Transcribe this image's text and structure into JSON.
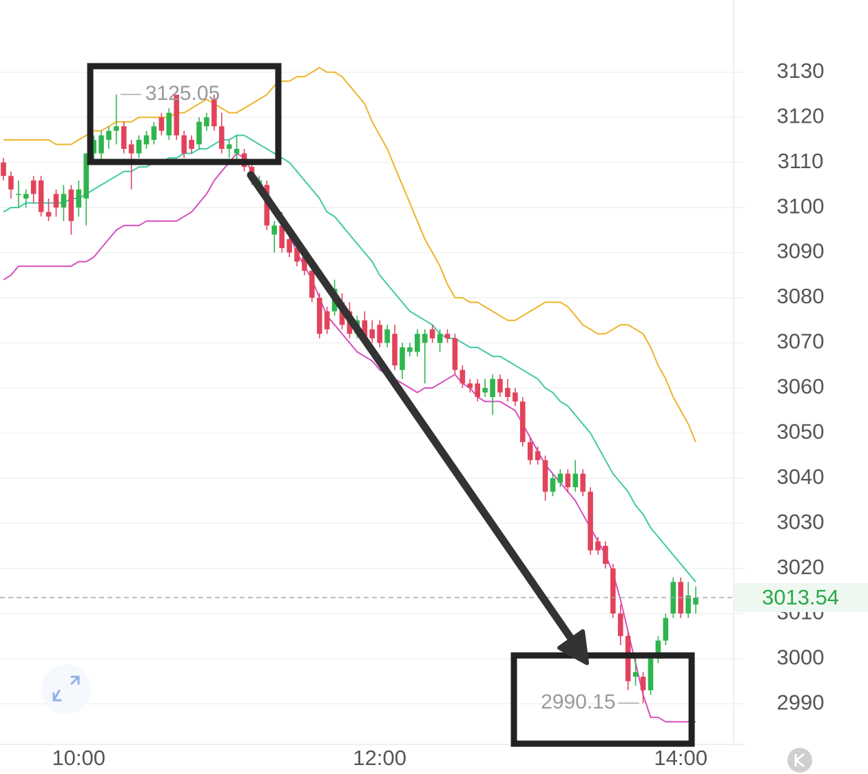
{
  "chart_data": {
    "type": "candlestick",
    "categories": [
      null,
      null,
      null,
      null,
      null,
      null,
      null,
      null,
      null,
      null,
      "10:00",
      null,
      null,
      null,
      null,
      null,
      null,
      null,
      null,
      null,
      null,
      null,
      null,
      null,
      null,
      null,
      null,
      null,
      null,
      null,
      null,
      null,
      null,
      null,
      null,
      null,
      null,
      null,
      null,
      null,
      null,
      null,
      null,
      null,
      null,
      null,
      null,
      null,
      null,
      null,
      "12:00",
      null,
      null,
      null,
      null,
      null,
      null,
      null,
      null,
      null,
      null,
      null,
      null,
      null,
      null,
      null,
      null,
      null,
      null,
      null,
      null,
      null,
      null,
      null,
      null,
      null,
      null,
      null,
      null,
      null,
      null,
      null,
      null,
      null,
      null,
      null,
      null,
      null,
      null,
      null,
      "14:00",
      null,
      null
    ],
    "open": [
      3110,
      3107,
      3103,
      3102,
      3106,
      3106,
      3099,
      3103,
      3100,
      3104,
      3100,
      3102,
      3112,
      3112,
      3115,
      3117,
      3118,
      3114,
      3112,
      3114,
      3115,
      3120,
      3116,
      3125,
      3116,
      3115,
      3114,
      3118,
      3124,
      3118,
      3113,
      3112,
      3112,
      3109,
      3105,
      3105,
      3094,
      3096,
      3093,
      3091,
      3089,
      3086,
      3080,
      3077,
      3077,
      3079,
      3077,
      3072,
      3075,
      3073,
      3074,
      3070,
      3072,
      3064,
      3068,
      3068,
      3070,
      3073,
      3070,
      3072,
      3071,
      3064,
      3061,
      3061,
      3059,
      3058,
      3062,
      3060,
      3059,
      3057,
      3048,
      3046,
      3044,
      3037,
      3039,
      3041,
      3038,
      3041,
      3037,
      3026,
      3025,
      3020,
      3010,
      3005,
      2996,
      2996,
      2993,
      3000,
      3004,
      3010,
      3017,
      3010,
      3012
    ],
    "high": [
      3111,
      3108,
      3106,
      3104,
      3107,
      3107,
      3102,
      3104,
      3105,
      3105,
      3106,
      3112,
      3116,
      3117,
      3118,
      3125.05,
      3119,
      3115,
      3116,
      3117,
      3119,
      3121,
      3122,
      3125,
      3117,
      3116,
      3120,
      3121,
      3125,
      3121,
      3115,
      3116,
      3113,
      3110,
      3107,
      3106,
      3097,
      3099,
      3094,
      3092,
      3090,
      3087,
      3081,
      3078,
      3084,
      3081,
      3079,
      3076,
      3077,
      3075,
      3075,
      3074,
      3074,
      3070,
      3070,
      3073,
      3073,
      3074,
      3073,
      3073,
      3072,
      3065,
      3062,
      3062,
      3062,
      3063,
      3063,
      3062,
      3060,
      3058,
      3049,
      3047,
      3045,
      3041,
      3042,
      3042,
      3044,
      3042,
      3038,
      3027,
      3026,
      3021,
      3012,
      3006,
      3000,
      2997,
      3001,
      3005,
      3010,
      3018,
      3018,
      3017,
      3016
    ],
    "low": [
      3106,
      3102,
      3100,
      3100,
      3101,
      3098,
      3097,
      3098,
      3097,
      3094,
      3098,
      3096,
      3110,
      3110,
      3113,
      3114,
      3112,
      3104,
      3111,
      3113,
      3114,
      3116,
      3115,
      3115,
      3111,
      3112,
      3113,
      3117,
      3117,
      3112,
      3111,
      3110,
      3108,
      3105,
      3103,
      3095,
      3090,
      3090,
      3089,
      3087,
      3085,
      3079,
      3071,
      3072,
      3076,
      3073,
      3071,
      3071,
      3070,
      3070,
      3069,
      3069,
      3064,
      3062,
      3067,
      3067,
      3061,
      3070,
      3068,
      3070,
      3063,
      3060,
      3059,
      3057,
      3058,
      3054,
      3058,
      3057,
      3056,
      3047,
      3043,
      3043,
      3035,
      3036,
      3038,
      3037,
      3037,
      3036,
      3023,
      3023,
      3020,
      3009,
      3003,
      2993,
      2994,
      2990.15,
      2992,
      2999,
      3003,
      3009,
      3009,
      3009,
      3010
    ],
    "close": [
      3107,
      3104,
      3103,
      3103,
      3103,
      3099,
      3098,
      3100,
      3103,
      3097,
      3104,
      3112,
      3115,
      3116,
      3117,
      3118,
      3113,
      3112,
      3115,
      3116,
      3118,
      3117,
      3121,
      3116,
      3112,
      3113,
      3119,
      3120,
      3118,
      3113,
      3114,
      3113,
      3109,
      3106,
      3106,
      3096,
      3096,
      3091,
      3090,
      3088,
      3086,
      3080,
      3072,
      3073,
      3082,
      3074,
      3072,
      3075,
      3071,
      3071,
      3070,
      3073,
      3065,
      3069,
      3069,
      3072,
      3072,
      3071,
      3072,
      3071,
      3064,
      3061,
      3060,
      3058,
      3060,
      3062,
      3059,
      3058,
      3057,
      3048,
      3044,
      3044,
      3037,
      3040,
      3041,
      3038,
      3041,
      3037,
      3024,
      3024,
      3021,
      3010,
      3005,
      2995,
      2997,
      2993,
      3000,
      3004,
      3009,
      3017,
      3010,
      3014,
      3013.54
    ],
    "up_color": "#2fb54e",
    "down_color": "#e2435b",
    "bands": [
      {
        "color": "#eeb32a",
        "values": [
          3115,
          3115,
          3115,
          3115,
          3115,
          3115,
          3115,
          3114,
          3114,
          3114,
          3115,
          3116,
          3117,
          3117,
          3118,
          3119,
          3119,
          3119,
          3120,
          3120,
          3120,
          3120,
          3120,
          3121,
          3121,
          3122,
          3123,
          3124,
          3123,
          3122,
          3121,
          3121,
          3122,
          3123,
          3124,
          3125,
          3127,
          3128,
          3128,
          3129,
          3129,
          3130,
          3131,
          3130,
          3130,
          3129,
          3127,
          3125,
          3123,
          3119,
          3116,
          3113,
          3109,
          3105,
          3101,
          3097,
          3093,
          3090,
          3087,
          3083,
          3080,
          3080,
          3079,
          3079,
          3078,
          3077,
          3076,
          3075,
          3075,
          3076,
          3077,
          3078,
          3079,
          3079,
          3079,
          3078,
          3076,
          3074,
          3073,
          3072,
          3072,
          3073,
          3074,
          3074,
          3073,
          3072,
          3069,
          3065,
          3062,
          3058,
          3055,
          3052,
          3048
        ]
      },
      {
        "color": "#3fc9a6",
        "values": [
          3099,
          3100,
          3100,
          3101,
          3101,
          3101,
          3101,
          3101,
          3101,
          3102,
          3102,
          3103,
          3104,
          3105,
          3106,
          3107,
          3108,
          3108,
          3109,
          3109,
          3110,
          3110,
          3111,
          3111,
          3112,
          3112,
          3113,
          3113,
          3114,
          3115,
          3115,
          3116,
          3116,
          3115,
          3114,
          3113,
          3112,
          3111,
          3110,
          3108,
          3106,
          3104,
          3102,
          3099,
          3098,
          3096,
          3094,
          3092,
          3090,
          3088,
          3085,
          3083,
          3081,
          3079,
          3077,
          3076,
          3075,
          3074,
          3072,
          3071,
          3071,
          3070,
          3069,
          3069,
          3068,
          3067,
          3067,
          3066,
          3065,
          3064,
          3063,
          3062,
          3060,
          3059,
          3057,
          3056,
          3054,
          3052,
          3050,
          3047,
          3044,
          3041,
          3039,
          3037,
          3034,
          3032,
          3029,
          3027,
          3025,
          3023,
          3021,
          3019,
          3017
        ]
      },
      {
        "color": "#d54fbf",
        "values": [
          3084,
          3085,
          3087,
          3087,
          3087,
          3087,
          3087,
          3087,
          3087,
          3087,
          3088,
          3088,
          3089,
          3091,
          3093,
          3095,
          3096,
          3096,
          3096,
          3097,
          3097,
          3097,
          3097,
          3097,
          3098,
          3099,
          3101,
          3103,
          3106,
          3108,
          3110,
          3112,
          3111,
          3108,
          3106,
          3103,
          3100,
          3097,
          3094,
          3090,
          3087,
          3084,
          3080,
          3076,
          3074,
          3072,
          3070,
          3068,
          3067,
          3066,
          3064,
          3063,
          3062,
          3061,
          3060,
          3059,
          3060,
          3060,
          3061,
          3062,
          3063,
          3061,
          3060,
          3058,
          3057,
          3057,
          3057,
          3056,
          3055,
          3052,
          3049,
          3046,
          3043,
          3041,
          3039,
          3037,
          3035,
          3032,
          3029,
          3026,
          3023,
          3019,
          3013,
          3006,
          2999,
          2992,
          2987,
          2987,
          2986,
          2986,
          2986,
          2986,
          2986
        ]
      }
    ],
    "ylim": [
      2981,
      3146
    ],
    "yticks": [
      2990,
      3000,
      3010,
      3020,
      3030,
      3040,
      3050,
      3060,
      3070,
      3080,
      3090,
      3100,
      3110,
      3120,
      3130
    ],
    "grid": true
  }
}
